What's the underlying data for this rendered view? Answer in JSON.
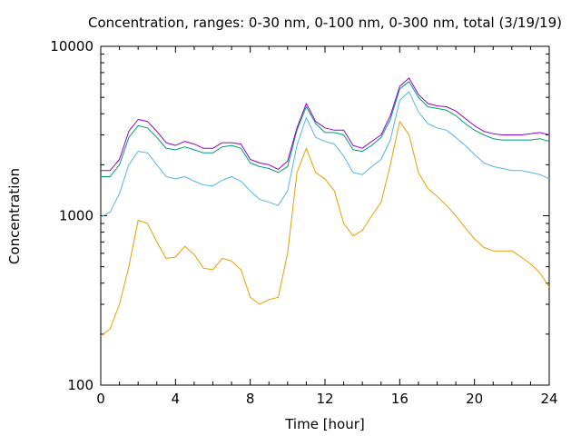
{
  "chart_data": {
    "type": "line",
    "title": "Concentration, ranges: 0-30 nm, 0-100 nm, 0-300 nm, total (3/19/19)",
    "xlabel": "Time [hour]",
    "ylabel": "Concentration",
    "xlim": [
      0,
      24
    ],
    "ylim": [
      100,
      10000
    ],
    "yscale": "log",
    "grid": false,
    "legend": "none",
    "x_ticks": [
      "0",
      "4",
      "8",
      "12",
      "16",
      "20",
      "24"
    ],
    "y_ticks": [
      "100",
      "1000",
      "10000"
    ],
    "x": [
      0,
      0.5,
      1,
      1.5,
      2,
      2.5,
      3,
      3.5,
      4,
      4.5,
      5,
      5.5,
      6,
      6.5,
      7,
      7.5,
      8,
      8.5,
      9,
      9.5,
      10,
      10.5,
      11,
      11.5,
      12,
      12.5,
      13,
      13.5,
      14,
      14.5,
      15,
      15.5,
      16,
      16.5,
      17,
      17.5,
      18,
      18.5,
      19,
      19.5,
      20,
      20.5,
      21,
      21.5,
      22,
      22.5,
      23,
      23.5,
      24
    ],
    "series": [
      {
        "color": "#e69f00",
        "values": [
          195,
          215,
          300,
          500,
          940,
          900,
          700,
          560,
          570,
          660,
          590,
          490,
          480,
          560,
          540,
          480,
          330,
          300,
          320,
          330,
          600,
          1800,
          2500,
          1800,
          1650,
          1400,
          900,
          760,
          820,
          1000,
          1200,
          2000,
          3600,
          3000,
          1800,
          1450,
          1300,
          1150,
          1000,
          850,
          730,
          650,
          620,
          620,
          620,
          570,
          520,
          460,
          380
        ]
      },
      {
        "color": "#56b4e9",
        "values": [
          980,
          1050,
          1350,
          2000,
          2400,
          2350,
          2000,
          1700,
          1650,
          1700,
          1600,
          1520,
          1500,
          1620,
          1700,
          1600,
          1400,
          1250,
          1200,
          1150,
          1400,
          2600,
          3800,
          2900,
          2750,
          2650,
          2250,
          1800,
          1750,
          1950,
          2150,
          2800,
          4800,
          5400,
          4100,
          3500,
          3300,
          3200,
          2900,
          2600,
          2300,
          2050,
          1950,
          1900,
          1850,
          1850,
          1800,
          1750,
          1650
        ]
      },
      {
        "color": "#009e73",
        "values": [
          1700,
          1700,
          2000,
          2900,
          3400,
          3300,
          2900,
          2500,
          2450,
          2550,
          2450,
          2350,
          2350,
          2550,
          2600,
          2500,
          2050,
          1950,
          1900,
          1800,
          1950,
          3200,
          4400,
          3500,
          3100,
          3100,
          3000,
          2450,
          2400,
          2600,
          2900,
          3700,
          5600,
          6200,
          5000,
          4400,
          4300,
          4200,
          3900,
          3500,
          3200,
          3000,
          2850,
          2800,
          2800,
          2800,
          2800,
          2850,
          2750
        ]
      },
      {
        "color": "#9400d3",
        "values": [
          1850,
          1850,
          2150,
          3150,
          3700,
          3600,
          3150,
          2700,
          2600,
          2750,
          2650,
          2500,
          2500,
          2700,
          2700,
          2650,
          2150,
          2050,
          2000,
          1880,
          2100,
          3300,
          4600,
          3600,
          3300,
          3200,
          3200,
          2600,
          2500,
          2750,
          3000,
          3900,
          5800,
          6500,
          5200,
          4600,
          4450,
          4400,
          4150,
          3750,
          3400,
          3150,
          3050,
          3000,
          3000,
          3000,
          3050,
          3100,
          3000
        ]
      }
    ]
  }
}
